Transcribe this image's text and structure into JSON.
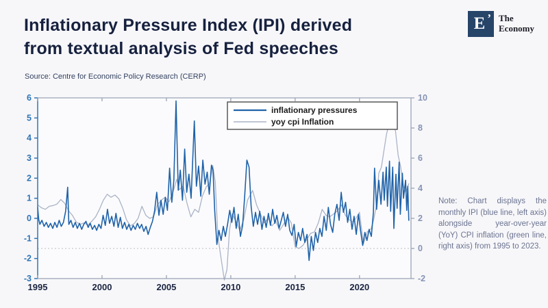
{
  "header": {
    "title_line1": "Inflationary Pressure Index (IPI) derived",
    "title_line2": "from textual analysis of Fed speeches",
    "source": "Source: Centre for Economic Policy Research (CERP)"
  },
  "logo": {
    "letter": "E",
    "mark": "’",
    "name_line1": "The",
    "name_line2": "Economy"
  },
  "note": {
    "text": "Note: Chart displays the monthly IPI (blue line, left axis) alongside year-over-year (YoY) CPI inflation (green line, right axis) from 1995 to 2023."
  },
  "colors": {
    "background": "#f7f7fa",
    "title": "#16213e",
    "ipi_line": "#1f62a8",
    "cpi_line": "#a9b3c6",
    "left_axis": "#2e74b5",
    "right_axis": "#8593b3",
    "x_labels": "#1b2440",
    "gray_spine": "#9aa3b5",
    "legend_border": "#4b4b4b",
    "dotted_line": "#bdbdbf",
    "plot_bg": "#fbfbfd"
  },
  "chart_data": {
    "type": "line",
    "title": "",
    "xlabel": "",
    "ylabel_left": "",
    "ylabel_right": "",
    "x_range": [
      1995,
      2024
    ],
    "left_ylim": [
      -3,
      6
    ],
    "right_ylim": [
      -2,
      10
    ],
    "x_ticks": [
      1995,
      2000,
      2005,
      2010,
      2015,
      2020
    ],
    "left_ticks": [
      -3,
      -2,
      -1,
      0,
      1,
      2,
      3,
      4,
      5,
      6
    ],
    "right_ticks": [
      -2,
      0,
      2,
      4,
      6,
      8,
      10
    ],
    "grid": false,
    "reference_line": {
      "axis": "right",
      "value": 0,
      "style": "dotted"
    },
    "legend_position": "top-right-inside",
    "series": [
      {
        "name": "inflationary pressures",
        "axis": "left",
        "color": "#1f62a8",
        "points": [
          [
            1995.0,
            0.55
          ],
          [
            1995.08,
            -0.05
          ],
          [
            1995.17,
            -0.3
          ],
          [
            1995.33,
            -0.1
          ],
          [
            1995.5,
            -0.4
          ],
          [
            1995.67,
            -0.2
          ],
          [
            1995.83,
            -0.45
          ],
          [
            1996.0,
            -0.25
          ],
          [
            1996.17,
            -0.5
          ],
          [
            1996.33,
            -0.2
          ],
          [
            1996.5,
            -0.45
          ],
          [
            1996.67,
            -0.1
          ],
          [
            1996.83,
            -0.4
          ],
          [
            1997.0,
            -0.2
          ],
          [
            1997.17,
            0.35
          ],
          [
            1997.33,
            1.55
          ],
          [
            1997.42,
            -0.3
          ],
          [
            1997.58,
            -0.1
          ],
          [
            1997.75,
            -0.45
          ],
          [
            1997.92,
            -0.2
          ],
          [
            1998.08,
            -0.5
          ],
          [
            1998.25,
            -0.25
          ],
          [
            1998.42,
            -0.55
          ],
          [
            1998.58,
            -0.3
          ],
          [
            1998.75,
            -0.15
          ],
          [
            1998.92,
            -0.45
          ],
          [
            1999.08,
            -0.25
          ],
          [
            1999.25,
            -0.55
          ],
          [
            1999.42,
            -0.35
          ],
          [
            1999.58,
            -0.6
          ],
          [
            1999.75,
            -0.3
          ],
          [
            1999.92,
            -0.5
          ],
          [
            2000.08,
            0.15
          ],
          [
            2000.25,
            -0.35
          ],
          [
            2000.42,
            0.45
          ],
          [
            2000.58,
            -0.25
          ],
          [
            2000.75,
            0.1
          ],
          [
            2000.92,
            -0.4
          ],
          [
            2001.08,
            0.25
          ],
          [
            2001.25,
            -0.45
          ],
          [
            2001.42,
            0.05
          ],
          [
            2001.58,
            -0.5
          ],
          [
            2001.75,
            -0.2
          ],
          [
            2001.92,
            -0.55
          ],
          [
            2002.08,
            -0.3
          ],
          [
            2002.25,
            -0.6
          ],
          [
            2002.42,
            -0.35
          ],
          [
            2002.58,
            -0.55
          ],
          [
            2002.75,
            -0.25
          ],
          [
            2002.92,
            -0.5
          ],
          [
            2003.08,
            -0.3
          ],
          [
            2003.25,
            -0.65
          ],
          [
            2003.42,
            -0.4
          ],
          [
            2003.58,
            -0.8
          ],
          [
            2003.75,
            -0.45
          ],
          [
            2003.92,
            -0.15
          ],
          [
            2004.08,
            0.35
          ],
          [
            2004.25,
            1.3
          ],
          [
            2004.42,
            0.15
          ],
          [
            2004.58,
            0.9
          ],
          [
            2004.75,
            0.2
          ],
          [
            2004.92,
            1.05
          ],
          [
            2005.08,
            0.4
          ],
          [
            2005.25,
            2.5
          ],
          [
            2005.42,
            0.8
          ],
          [
            2005.58,
            1.9
          ],
          [
            2005.75,
            5.85
          ],
          [
            2005.92,
            1.4
          ],
          [
            2006.08,
            2.4
          ],
          [
            2006.25,
            0.9
          ],
          [
            2006.42,
            3.45
          ],
          [
            2006.58,
            1.3
          ],
          [
            2006.75,
            2.2
          ],
          [
            2006.92,
            1.0
          ],
          [
            2007.17,
            4.85
          ],
          [
            2007.33,
            1.6
          ],
          [
            2007.5,
            2.6
          ],
          [
            2007.67,
            1.1
          ],
          [
            2007.83,
            2.9
          ],
          [
            2008.0,
            1.7
          ],
          [
            2008.17,
            2.3
          ],
          [
            2008.33,
            1.2
          ],
          [
            2008.5,
            2.65
          ],
          [
            2008.62,
            2.4
          ],
          [
            2008.75,
            0.4
          ],
          [
            2008.92,
            -1.3
          ],
          [
            2009.08,
            -0.6
          ],
          [
            2009.25,
            -1.1
          ],
          [
            2009.42,
            -0.4
          ],
          [
            2009.58,
            -0.9
          ],
          [
            2009.75,
            -0.3
          ],
          [
            2009.92,
            0.4
          ],
          [
            2010.08,
            -0.2
          ],
          [
            2010.25,
            0.55
          ],
          [
            2010.42,
            -0.5
          ],
          [
            2010.58,
            0.2
          ],
          [
            2010.75,
            -0.9
          ],
          [
            2010.92,
            -0.35
          ],
          [
            2011.08,
            1.1
          ],
          [
            2011.25,
            2.9
          ],
          [
            2011.42,
            2.55
          ],
          [
            2011.58,
            0.6
          ],
          [
            2011.75,
            -0.4
          ],
          [
            2011.92,
            0.3
          ],
          [
            2012.08,
            -0.3
          ],
          [
            2012.25,
            0.35
          ],
          [
            2012.42,
            -0.55
          ],
          [
            2012.58,
            0.1
          ],
          [
            2012.75,
            -0.45
          ],
          [
            2012.92,
            0.25
          ],
          [
            2013.08,
            -0.35
          ],
          [
            2013.25,
            0.45
          ],
          [
            2013.42,
            -0.25
          ],
          [
            2013.58,
            0.15
          ],
          [
            2013.75,
            -0.5
          ],
          [
            2013.92,
            -0.1
          ],
          [
            2014.08,
            0.3
          ],
          [
            2014.25,
            -0.4
          ],
          [
            2014.42,
            0.2
          ],
          [
            2014.58,
            -0.6
          ],
          [
            2014.75,
            -0.85
          ],
          [
            2014.92,
            -0.3
          ],
          [
            2015.08,
            -1.4
          ],
          [
            2015.25,
            -0.7
          ],
          [
            2015.42,
            -1.1
          ],
          [
            2015.58,
            -0.5
          ],
          [
            2015.75,
            -1.2
          ],
          [
            2015.92,
            -0.8
          ],
          [
            2016.08,
            -2.1
          ],
          [
            2016.25,
            -0.9
          ],
          [
            2016.42,
            -1.6
          ],
          [
            2016.58,
            -0.7
          ],
          [
            2016.75,
            -1.2
          ],
          [
            2016.92,
            -0.5
          ],
          [
            2017.08,
            -0.9
          ],
          [
            2017.25,
            0.1
          ],
          [
            2017.42,
            -0.6
          ],
          [
            2017.58,
            0.55
          ],
          [
            2017.75,
            -0.3
          ],
          [
            2017.92,
            -0.7
          ],
          [
            2018.08,
            0.2
          ],
          [
            2018.25,
            0.7
          ],
          [
            2018.42,
            -0.1
          ],
          [
            2018.58,
            1.3
          ],
          [
            2018.75,
            0.3
          ],
          [
            2018.92,
            0.8
          ],
          [
            2019.08,
            -0.2
          ],
          [
            2019.25,
            0.45
          ],
          [
            2019.42,
            -0.55
          ],
          [
            2019.58,
            0.1
          ],
          [
            2019.75,
            -0.8
          ],
          [
            2019.92,
            0.2
          ],
          [
            2020.08,
            -0.6
          ],
          [
            2020.25,
            -1.35
          ],
          [
            2020.42,
            -0.7
          ],
          [
            2020.58,
            -1.1
          ],
          [
            2020.75,
            -0.55
          ],
          [
            2020.92,
            -0.9
          ],
          [
            2021.08,
            0.3
          ],
          [
            2021.17,
            2.5
          ],
          [
            2021.33,
            0.45
          ],
          [
            2021.5,
            1.9
          ],
          [
            2021.67,
            0.7
          ],
          [
            2021.83,
            2.3
          ],
          [
            2021.92,
            0.9
          ],
          [
            2022.08,
            2.55
          ],
          [
            2022.17,
            0.6
          ],
          [
            2022.33,
            2.85
          ],
          [
            2022.42,
            0.35
          ],
          [
            2022.58,
            2.55
          ],
          [
            2022.67,
            -0.5
          ],
          [
            2022.83,
            2.2
          ],
          [
            2022.92,
            0.5
          ],
          [
            2023.08,
            2.8
          ],
          [
            2023.17,
            0.2
          ],
          [
            2023.33,
            2.25
          ],
          [
            2023.42,
            1.0
          ],
          [
            2023.58,
            1.9
          ],
          [
            2023.67,
            0.4
          ],
          [
            2023.75,
            1.6
          ],
          [
            2023.83,
            -0.1
          ]
        ]
      },
      {
        "name": "yoy cpi Inflation",
        "axis": "right",
        "color": "#a9b3c6",
        "points": [
          [
            1995.0,
            2.9
          ],
          [
            1995.3,
            2.7
          ],
          [
            1995.6,
            2.6
          ],
          [
            1995.9,
            2.8
          ],
          [
            1996.2,
            2.85
          ],
          [
            1996.5,
            2.95
          ],
          [
            1996.8,
            3.25
          ],
          [
            1997.1,
            3.0
          ],
          [
            1997.4,
            2.5
          ],
          [
            1997.7,
            2.2
          ],
          [
            1998.0,
            1.75
          ],
          [
            1998.3,
            1.6
          ],
          [
            1998.6,
            1.7
          ],
          [
            1998.9,
            1.55
          ],
          [
            1999.2,
            1.8
          ],
          [
            1999.5,
            2.1
          ],
          [
            1999.8,
            2.6
          ],
          [
            2000.1,
            3.2
          ],
          [
            2000.4,
            3.6
          ],
          [
            2000.7,
            3.4
          ],
          [
            2001.0,
            3.55
          ],
          [
            2001.3,
            3.3
          ],
          [
            2001.6,
            2.7
          ],
          [
            2001.9,
            1.9
          ],
          [
            2002.2,
            1.5
          ],
          [
            2002.5,
            1.65
          ],
          [
            2002.8,
            2.0
          ],
          [
            2003.1,
            2.8
          ],
          [
            2003.4,
            2.2
          ],
          [
            2003.7,
            2.0
          ],
          [
            2004.0,
            2.1
          ],
          [
            2004.3,
            2.9
          ],
          [
            2004.6,
            3.2
          ],
          [
            2004.9,
            3.4
          ],
          [
            2005.2,
            3.1
          ],
          [
            2005.5,
            3.7
          ],
          [
            2005.8,
            4.6
          ],
          [
            2006.0,
            3.9
          ],
          [
            2006.3,
            4.15
          ],
          [
            2006.6,
            3.0
          ],
          [
            2006.9,
            2.1
          ],
          [
            2007.2,
            2.6
          ],
          [
            2007.5,
            2.4
          ],
          [
            2007.8,
            3.5
          ],
          [
            2008.1,
            4.1
          ],
          [
            2008.35,
            4.3
          ],
          [
            2008.6,
            5.5
          ],
          [
            2008.8,
            4.4
          ],
          [
            2009.0,
            0.8
          ],
          [
            2009.2,
            -0.4
          ],
          [
            2009.5,
            -2.1
          ],
          [
            2009.7,
            -1.4
          ],
          [
            2009.9,
            1.2
          ],
          [
            2010.1,
            2.3
          ],
          [
            2010.4,
            1.8
          ],
          [
            2010.7,
            1.2
          ],
          [
            2011.0,
            1.9
          ],
          [
            2011.3,
            3.2
          ],
          [
            2011.7,
            3.85
          ],
          [
            2012.0,
            2.9
          ],
          [
            2012.3,
            2.3
          ],
          [
            2012.6,
            1.7
          ],
          [
            2012.9,
            2.0
          ],
          [
            2013.2,
            1.5
          ],
          [
            2013.5,
            1.8
          ],
          [
            2013.8,
            1.2
          ],
          [
            2014.1,
            1.6
          ],
          [
            2014.4,
            2.1
          ],
          [
            2014.7,
            1.7
          ],
          [
            2015.0,
            0.1
          ],
          [
            2015.3,
            0.0
          ],
          [
            2015.6,
            0.2
          ],
          [
            2015.9,
            0.6
          ],
          [
            2016.2,
            1.0
          ],
          [
            2016.5,
            1.1
          ],
          [
            2016.8,
            1.7
          ],
          [
            2017.1,
            2.6
          ],
          [
            2017.4,
            2.2
          ],
          [
            2017.7,
            2.1
          ],
          [
            2018.0,
            2.3
          ],
          [
            2018.3,
            2.5
          ],
          [
            2018.6,
            2.9
          ],
          [
            2018.9,
            2.2
          ],
          [
            2019.2,
            1.9
          ],
          [
            2019.5,
            1.75
          ],
          [
            2019.8,
            2.1
          ],
          [
            2020.0,
            2.4
          ],
          [
            2020.3,
            0.3
          ],
          [
            2020.6,
            1.1
          ],
          [
            2020.9,
            1.3
          ],
          [
            2021.1,
            1.9
          ],
          [
            2021.3,
            2.8
          ],
          [
            2021.5,
            5.0
          ],
          [
            2021.7,
            5.4
          ],
          [
            2021.9,
            6.5
          ],
          [
            2022.1,
            7.6
          ],
          [
            2022.3,
            8.3
          ],
          [
            2022.45,
            8.6
          ],
          [
            2022.6,
            8.3
          ],
          [
            2022.8,
            7.8
          ],
          [
            2023.0,
            6.2
          ],
          [
            2023.2,
            5.4
          ],
          [
            2023.4,
            4.2
          ],
          [
            2023.6,
            3.7
          ],
          [
            2023.83,
            4.3
          ]
        ]
      }
    ]
  }
}
